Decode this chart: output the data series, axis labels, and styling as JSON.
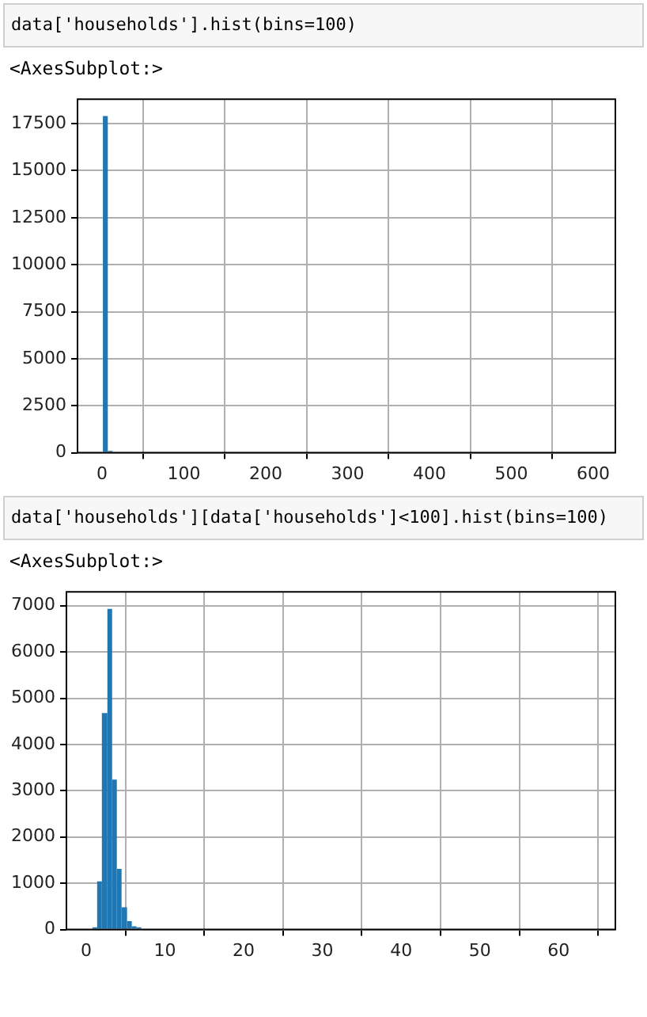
{
  "chart_data": [
    {
      "type": "histogram",
      "annotations": [
        "data['households'].hist(bins=100)",
        "<AxesSubplot:>"
      ],
      "bins": [
        1,
        7,
        13
      ],
      "values": [
        17900,
        100
      ],
      "color": "#1f77b4",
      "xlim": [
        -30,
        627
      ],
      "xticks": [
        0,
        100,
        200,
        300,
        400,
        500,
        600
      ],
      "ylim": [
        0,
        18800
      ],
      "yticks": [
        0,
        2500,
        5000,
        7500,
        10000,
        12500,
        15000,
        17500
      ],
      "grid": true,
      "legend": false
    },
    {
      "type": "histogram",
      "annotations": [
        "data['households'][data['households']<100].hist(bins=100)",
        "<AxesSubplot:>"
      ],
      "bins": [
        0.8,
        1.4,
        2.0,
        2.7,
        3.3,
        3.9,
        4.5,
        5.2,
        5.8,
        6.4,
        7.0
      ],
      "values": [
        50,
        1040,
        4680,
        6930,
        3240,
        1310,
        480,
        180,
        70,
        50
      ],
      "color": "#1f77b4",
      "xlim": [
        -2.5,
        67.2
      ],
      "xticks": [
        0,
        10,
        20,
        30,
        40,
        50,
        60
      ],
      "ylim": [
        0,
        7300
      ],
      "yticks": [
        0,
        1000,
        2000,
        3000,
        4000,
        5000,
        6000,
        7000
      ],
      "grid": true,
      "legend": false
    }
  ]
}
